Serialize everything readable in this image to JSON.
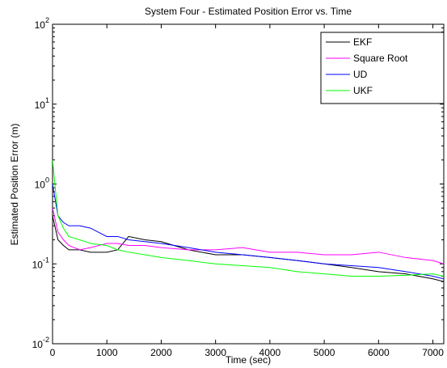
{
  "chart_data": {
    "type": "line",
    "title": "System Four - Estimated Position Error vs. Time",
    "x_label": "Time (sec)",
    "y_label": "Estimated Position Error (m)",
    "x": [
      0,
      100,
      200,
      300,
      500,
      700,
      1000,
      1200,
      1400,
      1700,
      2000,
      2500,
      3000,
      3500,
      4000,
      4500,
      5000,
      5500,
      6000,
      6500,
      7000,
      7200
    ],
    "series": [
      {
        "name": "EKF",
        "color": "#000000",
        "values": [
          0.4,
          0.2,
          0.17,
          0.15,
          0.15,
          0.14,
          0.14,
          0.15,
          0.22,
          0.2,
          0.19,
          0.15,
          0.13,
          0.13,
          0.12,
          0.11,
          0.1,
          0.09,
          0.08,
          0.075,
          0.065,
          0.06
        ]
      },
      {
        "name": "Square Root",
        "color": "#ff00ff",
        "values": [
          0.5,
          0.25,
          0.2,
          0.17,
          0.15,
          0.16,
          0.18,
          0.18,
          0.17,
          0.17,
          0.16,
          0.15,
          0.15,
          0.16,
          0.14,
          0.14,
          0.13,
          0.13,
          0.14,
          0.12,
          0.11,
          0.1
        ]
      },
      {
        "name": "UD",
        "color": "#0000ff",
        "values": [
          1.0,
          0.4,
          0.33,
          0.3,
          0.3,
          0.28,
          0.22,
          0.22,
          0.2,
          0.19,
          0.18,
          0.16,
          0.14,
          0.13,
          0.12,
          0.11,
          0.1,
          0.095,
          0.09,
          0.08,
          0.07,
          0.065
        ]
      },
      {
        "name": "UKF",
        "color": "#00ff00",
        "values": [
          2.0,
          0.4,
          0.28,
          0.22,
          0.2,
          0.18,
          0.17,
          0.15,
          0.14,
          0.13,
          0.12,
          0.11,
          0.1,
          0.095,
          0.09,
          0.08,
          0.075,
          0.07,
          0.07,
          0.072,
          0.075,
          0.07
        ]
      }
    ],
    "xlim": [
      0,
      7200
    ],
    "xticks": [
      0,
      1000,
      2000,
      3000,
      4000,
      5000,
      6000,
      7000
    ],
    "ylim": [
      0.01,
      100
    ],
    "yticks": [
      {
        "value": 0.01,
        "label": "10^-2"
      },
      {
        "value": 0.1,
        "label": "10^-1"
      },
      {
        "value": 1,
        "label": "10^0"
      },
      {
        "value": 10,
        "label": "10^1"
      },
      {
        "value": 100,
        "label": "10^2"
      }
    ],
    "yscale": "log",
    "grid": false,
    "legend_position": "upper right"
  }
}
